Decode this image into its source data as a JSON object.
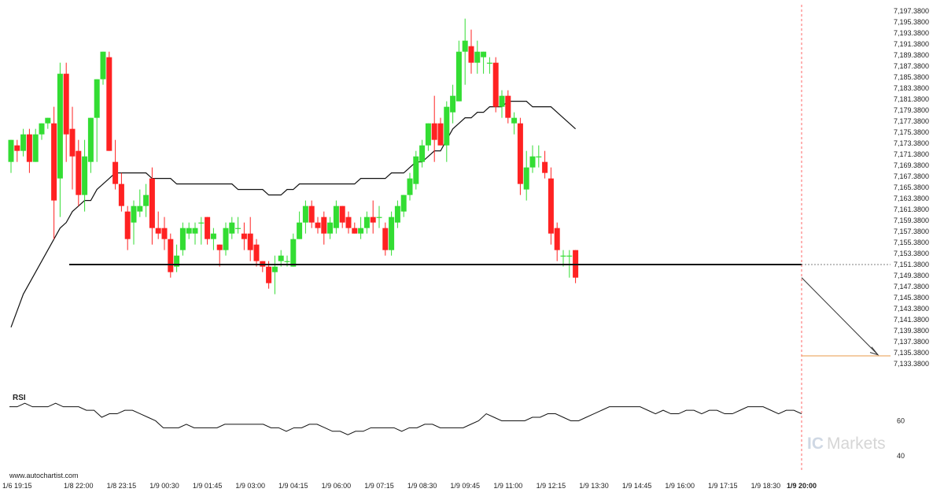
{
  "source_credit": "www.autochartist.com",
  "watermark": {
    "part1": "IC",
    "part2": "Markets"
  },
  "rsi_label": "RSI",
  "colors": {
    "bull": "#33dd33",
    "bear": "#ff2222",
    "ma": "#111111",
    "support": "#111111",
    "projection": "#333333",
    "target": "#e89a4a",
    "grid": "#dddddd"
  },
  "chart_data": {
    "type": "candlestick",
    "title": "",
    "price_axis": {
      "ylim": [
        7131.38,
        7198.38
      ],
      "ticks": [
        "7,197.3800",
        "7,195.3800",
        "7,193.3800",
        "7,191.3800",
        "7,189.3800",
        "7,187.3800",
        "7,185.3800",
        "7,183.3800",
        "7,181.3800",
        "7,179.3800",
        "7,177.3800",
        "7,175.3800",
        "7,173.3800",
        "7,171.3800",
        "7,169.3800",
        "7,167.3800",
        "7,165.3800",
        "7,163.3800",
        "7,161.3800",
        "7,159.3800",
        "7,157.3800",
        "7,155.3800",
        "7,153.3800",
        "7,151.3800",
        "7,149.3800",
        "7,147.3800",
        "7,145.3800",
        "7,143.3800",
        "7,141.3800",
        "7,139.3800",
        "7,137.3800",
        "7,135.3800",
        "7,133.3800"
      ],
      "tick_values": [
        7197.38,
        7195.38,
        7193.38,
        7191.38,
        7189.38,
        7187.38,
        7185.38,
        7183.38,
        7181.38,
        7179.38,
        7177.38,
        7175.38,
        7173.38,
        7171.38,
        7169.38,
        7167.38,
        7165.38,
        7163.38,
        7161.38,
        7159.38,
        7157.38,
        7155.38,
        7153.38,
        7151.38,
        7149.38,
        7147.38,
        7145.38,
        7143.38,
        7141.38,
        7139.38,
        7137.38,
        7135.38,
        7133.38
      ]
    },
    "time_axis": {
      "ticks": [
        "1/6 19:15",
        "1/8 22:00",
        "1/8 23:15",
        "1/9 00:30",
        "1/9 01:45",
        "1/9 03:00",
        "1/9 04:15",
        "1/9 06:00",
        "1/9 07:15",
        "1/9 08:30",
        "1/9 09:45",
        "1/9 11:00",
        "1/9 12:15",
        "1/9 13:30",
        "1/9 14:45",
        "1/9 16:00",
        "1/9 17:15",
        "1/9 18:30",
        "1/9 20:00"
      ],
      "tick_index": [
        1,
        11,
        18,
        25,
        32,
        39,
        46,
        53,
        60,
        67,
        74,
        81,
        88,
        95,
        102,
        109,
        116,
        123,
        130
      ]
    },
    "candles": [
      {
        "o": 7170,
        "h": 7174,
        "l": 7168,
        "c": 7174
      },
      {
        "o": 7173,
        "h": 7174,
        "l": 7170,
        "c": 7172
      },
      {
        "o": 7172,
        "h": 7176,
        "l": 7171,
        "c": 7175
      },
      {
        "o": 7175,
        "h": 7176,
        "l": 7168,
        "c": 7170
      },
      {
        "o": 7170,
        "h": 7176,
        "l": 7170,
        "c": 7175
      },
      {
        "o": 7175,
        "h": 7177,
        "l": 7174,
        "c": 7177
      },
      {
        "o": 7177,
        "h": 7178,
        "l": 7176,
        "c": 7178
      },
      {
        "o": 7177,
        "h": 7180,
        "l": 7156,
        "c": 7163
      },
      {
        "o": 7167,
        "h": 7188,
        "l": 7160,
        "c": 7186
      },
      {
        "o": 7186,
        "h": 7188,
        "l": 7170,
        "c": 7175
      },
      {
        "o": 7176,
        "h": 7180,
        "l": 7165,
        "c": 7171
      },
      {
        "o": 7172,
        "h": 7174,
        "l": 7162,
        "c": 7164
      },
      {
        "o": 7164,
        "h": 7174,
        "l": 7161,
        "c": 7171
      },
      {
        "o": 7170,
        "h": 7178,
        "l": 7168,
        "c": 7178
      },
      {
        "o": 7178,
        "h": 7185,
        "l": 7170,
        "c": 7185
      },
      {
        "o": 7185,
        "h": 7190,
        "l": 7184,
        "c": 7190
      },
      {
        "o": 7189,
        "h": 7190,
        "l": 7172,
        "c": 7172
      },
      {
        "o": 7170,
        "h": 7174,
        "l": 7165,
        "c": 7166
      },
      {
        "o": 7166,
        "h": 7168,
        "l": 7161,
        "c": 7162
      },
      {
        "o": 7161,
        "h": 7162,
        "l": 7154,
        "c": 7156
      },
      {
        "o": 7159,
        "h": 7163,
        "l": 7155,
        "c": 7162
      },
      {
        "o": 7161,
        "h": 7165,
        "l": 7160,
        "c": 7162
      },
      {
        "o": 7162,
        "h": 7166,
        "l": 7160,
        "c": 7164
      },
      {
        "o": 7167,
        "h": 7169,
        "l": 7155,
        "c": 7158
      },
      {
        "o": 7158,
        "h": 7161,
        "l": 7156,
        "c": 7157
      },
      {
        "o": 7158,
        "h": 7160,
        "l": 7154,
        "c": 7156
      },
      {
        "o": 7156,
        "h": 7157,
        "l": 7149,
        "c": 7150
      },
      {
        "o": 7151,
        "h": 7155,
        "l": 7150,
        "c": 7153
      },
      {
        "o": 7154,
        "h": 7159,
        "l": 7153,
        "c": 7158
      },
      {
        "o": 7157,
        "h": 7159,
        "l": 7156,
        "c": 7158
      },
      {
        "o": 7157,
        "h": 7159,
        "l": 7155,
        "c": 7158
      },
      {
        "o": 7159,
        "h": 7160,
        "l": 7155,
        "c": 7159
      },
      {
        "o": 7160,
        "h": 7160,
        "l": 7155,
        "c": 7156
      },
      {
        "o": 7156,
        "h": 7158,
        "l": 7154,
        "c": 7157
      },
      {
        "o": 7155,
        "h": 7155,
        "l": 7151,
        "c": 7154
      },
      {
        "o": 7154,
        "h": 7159,
        "l": 7153,
        "c": 7158
      },
      {
        "o": 7157,
        "h": 7160,
        "l": 7156,
        "c": 7159
      },
      {
        "o": 7158,
        "h": 7160,
        "l": 7157,
        "c": 7158
      },
      {
        "o": 7157,
        "h": 7159,
        "l": 7154,
        "c": 7156
      },
      {
        "o": 7157,
        "h": 7160,
        "l": 7152,
        "c": 7154
      },
      {
        "o": 7155,
        "h": 7156,
        "l": 7151,
        "c": 7152
      },
      {
        "o": 7152,
        "h": 7152,
        "l": 7150,
        "c": 7151
      },
      {
        "o": 7151,
        "h": 7152,
        "l": 7147,
        "c": 7148
      },
      {
        "o": 7150,
        "h": 7153,
        "l": 7146,
        "c": 7151
      },
      {
        "o": 7152,
        "h": 7154,
        "l": 7151,
        "c": 7153
      },
      {
        "o": 7152,
        "h": 7153,
        "l": 7151,
        "c": 7152
      },
      {
        "o": 7151,
        "h": 7157,
        "l": 7151,
        "c": 7156
      },
      {
        "o": 7156,
        "h": 7161,
        "l": 7156,
        "c": 7159
      },
      {
        "o": 7159,
        "h": 7163,
        "l": 7157,
        "c": 7162
      },
      {
        "o": 7162,
        "h": 7163,
        "l": 7158,
        "c": 7159
      },
      {
        "o": 7159,
        "h": 7160,
        "l": 7157,
        "c": 7158
      },
      {
        "o": 7160,
        "h": 7161,
        "l": 7155,
        "c": 7157
      },
      {
        "o": 7157,
        "h": 7160,
        "l": 7156,
        "c": 7159
      },
      {
        "o": 7158,
        "h": 7163,
        "l": 7157,
        "c": 7162
      },
      {
        "o": 7162,
        "h": 7162,
        "l": 7158,
        "c": 7159
      },
      {
        "o": 7160,
        "h": 7161,
        "l": 7157,
        "c": 7158
      },
      {
        "o": 7158,
        "h": 7159,
        "l": 7157,
        "c": 7157
      },
      {
        "o": 7157,
        "h": 7160,
        "l": 7156,
        "c": 7158
      },
      {
        "o": 7158,
        "h": 7161,
        "l": 7157,
        "c": 7160
      },
      {
        "o": 7160,
        "h": 7163,
        "l": 7157,
        "c": 7159
      },
      {
        "o": 7160,
        "h": 7162,
        "l": 7158,
        "c": 7160
      },
      {
        "o": 7158,
        "h": 7159,
        "l": 7153,
        "c": 7154
      },
      {
        "o": 7154,
        "h": 7161,
        "l": 7153,
        "c": 7160
      },
      {
        "o": 7159,
        "h": 7163,
        "l": 7158,
        "c": 7162
      },
      {
        "o": 7161,
        "h": 7164,
        "l": 7160,
        "c": 7164
      },
      {
        "o": 7164,
        "h": 7168,
        "l": 7163,
        "c": 7167
      },
      {
        "o": 7166,
        "h": 7172,
        "l": 7165,
        "c": 7171
      },
      {
        "o": 7170,
        "h": 7174,
        "l": 7169,
        "c": 7173
      },
      {
        "o": 7173,
        "h": 7177,
        "l": 7172,
        "c": 7177
      },
      {
        "o": 7177,
        "h": 7182,
        "l": 7170,
        "c": 7174
      },
      {
        "o": 7177,
        "h": 7178,
        "l": 7173,
        "c": 7173
      },
      {
        "o": 7173,
        "h": 7181,
        "l": 7170,
        "c": 7180
      },
      {
        "o": 7179,
        "h": 7184,
        "l": 7177,
        "c": 7182
      },
      {
        "o": 7181,
        "h": 7192,
        "l": 7181,
        "c": 7190
      },
      {
        "o": 7190,
        "h": 7196,
        "l": 7184,
        "c": 7192
      },
      {
        "o": 7191,
        "h": 7194,
        "l": 7186,
        "c": 7188
      },
      {
        "o": 7188,
        "h": 7192,
        "l": 7186,
        "c": 7190
      },
      {
        "o": 7189,
        "h": 7190,
        "l": 7186,
        "c": 7190
      },
      {
        "o": 7188,
        "h": 7189,
        "l": 7186,
        "c": 7188
      },
      {
        "o": 7188,
        "h": 7189,
        "l": 7179,
        "c": 7180
      },
      {
        "o": 7180,
        "h": 7183,
        "l": 7178,
        "c": 7182
      },
      {
        "o": 7182,
        "h": 7183,
        "l": 7177,
        "c": 7178
      },
      {
        "o": 7177,
        "h": 7179,
        "l": 7175,
        "c": 7178
      },
      {
        "o": 7177,
        "h": 7178,
        "l": 7164,
        "c": 7166
      },
      {
        "o": 7165,
        "h": 7172,
        "l": 7163,
        "c": 7169
      },
      {
        "o": 7169,
        "h": 7173,
        "l": 7168,
        "c": 7171
      },
      {
        "o": 7171,
        "h": 7173,
        "l": 7169,
        "c": 7171
      },
      {
        "o": 7170,
        "h": 7172,
        "l": 7167,
        "c": 7168
      },
      {
        "o": 7167,
        "h": 7169,
        "l": 7155,
        "c": 7157
      },
      {
        "o": 7158,
        "h": 7159,
        "l": 7152,
        "c": 7154
      },
      {
        "o": 7153,
        "h": 7154,
        "l": 7151,
        "c": 7153
      },
      {
        "o": 7153,
        "h": 7154,
        "l": 7149,
        "c": 7153
      },
      {
        "o": 7154,
        "h": 7154,
        "l": 7148,
        "c": 7149
      }
    ],
    "moving_average": [
      7140,
      7143,
      7146,
      7148,
      7150,
      7152,
      7154,
      7156,
      7158,
      7159,
      7161,
      7162,
      7163,
      7163,
      7165,
      7166,
      7167,
      7168,
      7168,
      7168,
      7168,
      7168,
      7168,
      7167,
      7167,
      7167,
      7167,
      7166,
      7166,
      7166,
      7166,
      7166,
      7166,
      7166,
      7166,
      7166,
      7166,
      7165,
      7165,
      7165,
      7165,
      7165,
      7164,
      7164,
      7164,
      7165,
      7165,
      7166,
      7166,
      7166,
      7166,
      7166,
      7166,
      7166,
      7166,
      7166,
      7166,
      7167,
      7167,
      7167,
      7167,
      7167,
      7168,
      7168,
      7168,
      7169,
      7170,
      7170,
      7171,
      7172,
      7172,
      7174,
      7176,
      7177,
      7178,
      7178,
      7179,
      7179,
      7180,
      7180,
      7180,
      7181,
      7181,
      7181,
      7181,
      7180,
      7180,
      7180,
      7180,
      7179,
      7178,
      7177,
      7176
    ],
    "support_level": 7151.38,
    "projection": {
      "from": 7149.0,
      "to": 7135.0
    },
    "target_level": 7134.8,
    "rsi": {
      "ylim": [
        35,
        80
      ],
      "ticks": [
        "60",
        "40"
      ],
      "tick_values": [
        60,
        40
      ],
      "values": [
        68,
        68,
        70,
        68,
        68,
        68,
        70,
        68,
        68,
        68,
        66,
        66,
        62,
        64,
        64,
        66,
        66,
        64,
        62,
        60,
        56,
        56,
        56,
        58,
        56,
        56,
        56,
        56,
        58,
        58,
        58,
        58,
        58,
        58,
        56,
        56,
        54,
        56,
        56,
        58,
        58,
        56,
        54,
        54,
        52,
        54,
        54,
        56,
        56,
        56,
        56,
        54,
        56,
        56,
        58,
        58,
        56,
        56,
        56,
        56,
        58,
        60,
        64,
        62,
        60,
        60,
        60,
        60,
        62,
        62,
        64,
        64,
        62,
        60,
        60,
        62,
        64,
        66,
        68,
        68,
        68,
        68,
        68,
        66,
        64,
        66,
        64,
        64,
        66,
        66,
        64,
        66,
        66,
        64,
        64,
        66,
        68,
        68,
        68,
        66,
        64,
        66,
        66,
        64
      ]
    }
  }
}
